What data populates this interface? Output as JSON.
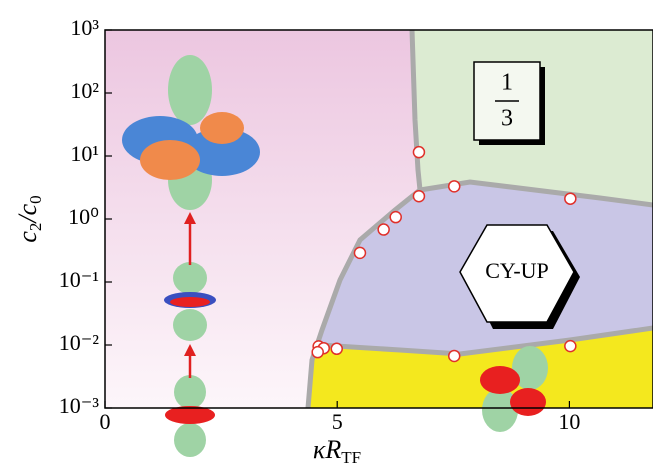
{
  "chart_data": {
    "type": "scatter",
    "xlabel": {
      "main": "κR",
      "sub": "TF"
    },
    "ylabel": {
      "parts": [
        "c",
        "2",
        "/c",
        "0"
      ]
    },
    "x": [
      6.76,
      6.76,
      7.52,
      10.02,
      6.26,
      6.0,
      5.49,
      4.6,
      4.71,
      4.58,
      4.99,
      7.52,
      10.02
    ],
    "values": [
      11.5,
      2.3,
      3.3,
      2.1,
      1.07,
      0.68,
      0.29,
      0.0095,
      0.0089,
      0.0077,
      0.0087,
      0.0067,
      0.0096
    ],
    "marker_color": "#e0302a",
    "xlim": [
      0,
      11.8
    ],
    "ylim": [
      0.001,
      1000
    ],
    "log_y": true,
    "xticks": [
      0,
      5,
      10
    ],
    "yticks": [
      {
        "value": 0.001,
        "label": "10⁻³"
      },
      {
        "value": 0.01,
        "label": "10⁻²"
      },
      {
        "value": 0.1,
        "label": "10⁻¹"
      },
      {
        "value": 1,
        "label": "10⁰"
      },
      {
        "value": 10,
        "label": "10¹"
      },
      {
        "value": 100,
        "label": "10²"
      },
      {
        "value": 1000,
        "label": "10³"
      }
    ],
    "annotations": {
      "fraction": {
        "numerator": "1",
        "denominator": "3"
      },
      "phase": "CY-UP"
    }
  }
}
